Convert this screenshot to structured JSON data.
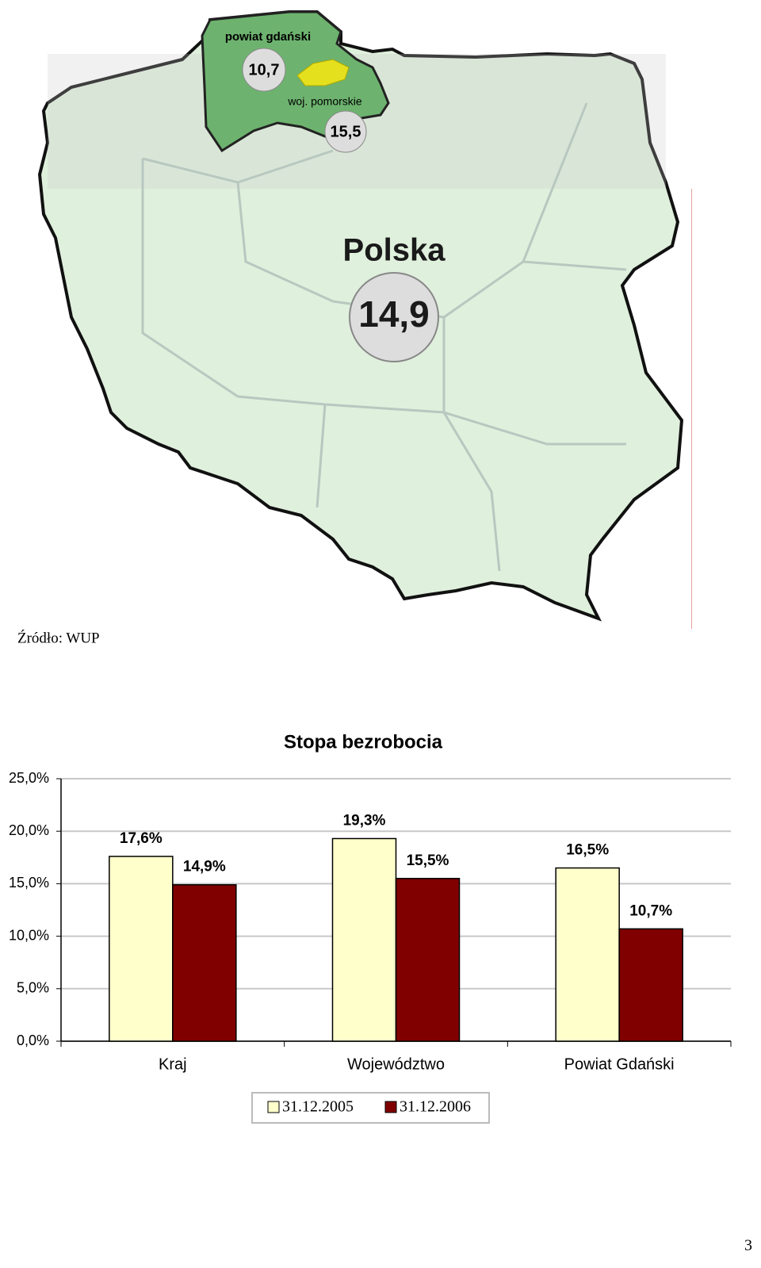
{
  "map": {
    "district_label": "powiat gdański",
    "district_value": "10,7",
    "region_label": "woj. pomorskie",
    "region_value": "15,5",
    "country_label": "Polska",
    "country_value": "14,9"
  },
  "source": "Źródło: WUP",
  "chart_data": {
    "type": "bar",
    "title": "Stopa bezrobocia",
    "categories": [
      "Kraj",
      "Województwo",
      "Powiat Gdański"
    ],
    "series": [
      {
        "name": "31.12.2005",
        "color": "#ffffcc",
        "values": [
          17.6,
          19.3,
          16.5
        ],
        "value_labels": [
          "17,6%",
          "19,3%",
          "16,5%"
        ]
      },
      {
        "name": "31.12.2006",
        "color": "#800000",
        "values": [
          14.9,
          15.5,
          10.7
        ],
        "value_labels": [
          "14,9%",
          "15,5%",
          "10,7%"
        ]
      }
    ],
    "ylim": [
      0,
      25
    ],
    "yticks": [
      {
        "value": 0,
        "label": "0,0%"
      },
      {
        "value": 5,
        "label": "5,0%"
      },
      {
        "value": 10,
        "label": "10,0%"
      },
      {
        "value": 15,
        "label": "15,0%"
      },
      {
        "value": 20,
        "label": "20,0%"
      },
      {
        "value": 25,
        "label": "25,0%"
      }
    ],
    "grid": true,
    "legend": "bottom"
  },
  "page_number": "3"
}
